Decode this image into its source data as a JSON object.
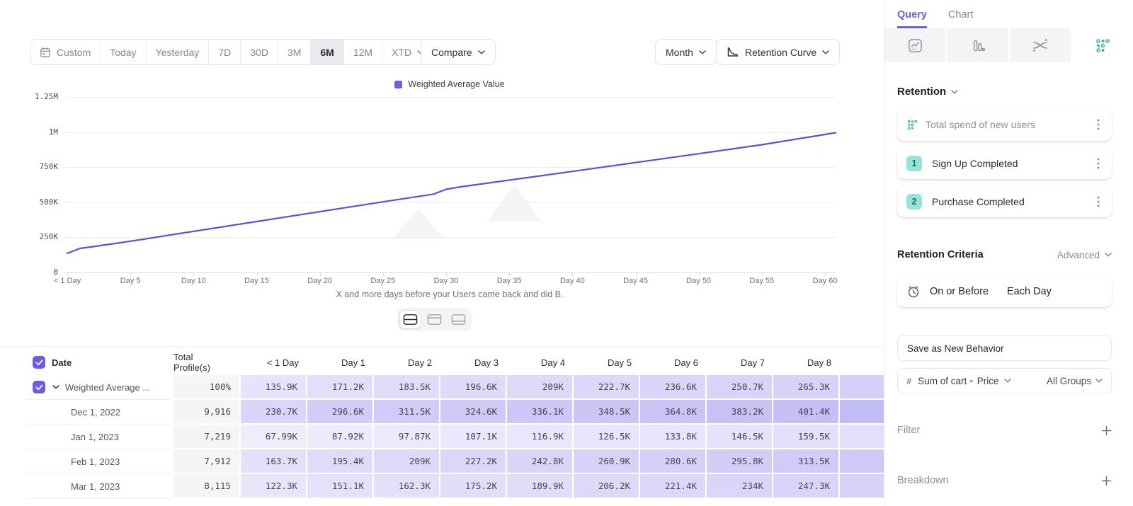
{
  "toolbar": {
    "date_ranges": [
      "Custom",
      "Today",
      "Yesterday",
      "7D",
      "30D",
      "3M",
      "6M",
      "12M",
      "XTD"
    ],
    "active_range": "6M",
    "compare_label": "Compare",
    "granularity_label": "Month",
    "chart_type_label": "Retention Curve"
  },
  "chart": {
    "legend_label": "Weighted Average Value",
    "caption": "X and more days before your Users came back and did B."
  },
  "chart_data": {
    "type": "line",
    "title": "Retention Curve — Weighted Average Value",
    "xlabel": "X and more days before your Users came back and did B.",
    "ylabel": "",
    "ylim": [
      0,
      1250000
    ],
    "xlim": [
      0,
      60
    ],
    "grid": true,
    "legend_position": "top-center",
    "y_tick_labels": [
      "0",
      "250K",
      "500K",
      "750K",
      "1M",
      "1.25M"
    ],
    "x_tick_labels": [
      "< 1 Day",
      "Day 5",
      "Day 10",
      "Day 15",
      "Day 20",
      "Day 25",
      "Day 30",
      "Day 35",
      "Day 40",
      "Day 45",
      "Day 50",
      "Day 55",
      "Day 60"
    ],
    "series": [
      {
        "name": "Weighted Average Value",
        "color": "#5E4EE3",
        "points": [
          [
            0,
            135900
          ],
          [
            1,
            171200
          ],
          [
            2,
            183500
          ],
          [
            3,
            196600
          ],
          [
            4,
            209000
          ],
          [
            5,
            222700
          ],
          [
            6,
            236600
          ],
          [
            7,
            250700
          ],
          [
            8,
            265300
          ],
          [
            10,
            293000
          ],
          [
            15,
            363000
          ],
          [
            20,
            433000
          ],
          [
            25,
            503000
          ],
          [
            29,
            558000
          ],
          [
            30,
            592000
          ],
          [
            31,
            608000
          ],
          [
            35,
            658000
          ],
          [
            40,
            720000
          ],
          [
            45,
            783000
          ],
          [
            50,
            846000
          ],
          [
            55,
            910000
          ],
          [
            60,
            983000
          ]
        ]
      }
    ]
  },
  "table": {
    "headers": [
      "Date",
      "Total Profile(s)",
      "< 1 Day",
      "Day 1",
      "Day 2",
      "Day 3",
      "Day 4",
      "Day 5",
      "Day 6",
      "Day 7",
      "Day 8"
    ],
    "rows": [
      {
        "label": "Weighted Average ...",
        "expandable": true,
        "checked": true,
        "profiles": "100%",
        "values": [
          "135.9K",
          "171.2K",
          "183.5K",
          "196.6K",
          "209K",
          "222.7K",
          "236.6K",
          "250.7K",
          "265.3K"
        ]
      },
      {
        "label": "Dec 1, 2022",
        "profiles": "9,916",
        "values": [
          "230.7K",
          "296.6K",
          "311.5K",
          "324.6K",
          "336.1K",
          "348.5K",
          "364.8K",
          "383.2K",
          "401.4K"
        ]
      },
      {
        "label": "Jan 1, 2023",
        "profiles": "7,219",
        "values": [
          "67.99K",
          "87.92K",
          "97.87K",
          "107.1K",
          "116.9K",
          "126.5K",
          "133.8K",
          "146.5K",
          "159.5K"
        ]
      },
      {
        "label": "Feb 1, 2023",
        "profiles": "7,912",
        "values": [
          "163.7K",
          "195.4K",
          "209K",
          "227.2K",
          "242.8K",
          "260.9K",
          "280.6K",
          "295.8K",
          "313.5K"
        ]
      },
      {
        "label": "Mar 1, 2023",
        "profiles": "8,115",
        "values": [
          "122.3K",
          "151.1K",
          "162.3K",
          "175.2K",
          "189.9K",
          "206.2K",
          "221.4K",
          "234K",
          "247.3K"
        ]
      }
    ]
  },
  "sidebar": {
    "tabs": [
      {
        "label": "Query",
        "active": true
      },
      {
        "label": "Chart",
        "active": false
      }
    ],
    "icon_tabs": [
      {
        "name": "insights-icon",
        "active": false
      },
      {
        "name": "bar-chart-icon",
        "active": false
      },
      {
        "name": "flow-icon",
        "active": false
      },
      {
        "name": "retention-icon",
        "active": true
      }
    ],
    "section_label": "Retention",
    "behavior_title": "Total spend of new users",
    "steps": [
      {
        "num": "1",
        "label": "Sign Up Completed"
      },
      {
        "num": "2",
        "label": "Purchase Completed"
      }
    ],
    "criteria_label": "Retention Criteria",
    "criteria_mode": "Advanced",
    "criteria_timing": "On or Before",
    "criteria_unit": "Each Day",
    "save_behavior_label": "Save as New Behavior",
    "measure_event": "Sum of cart",
    "measure_property": "Price",
    "measure_groups": "All Groups",
    "filter_label": "Filter",
    "breakdown_label": "Breakdown"
  },
  "colors": {
    "accent_purple": "#6C5CE7",
    "line_purple": "#5E4EE3",
    "teal": "#2FB8A6",
    "heat_base": "#6858E6"
  }
}
